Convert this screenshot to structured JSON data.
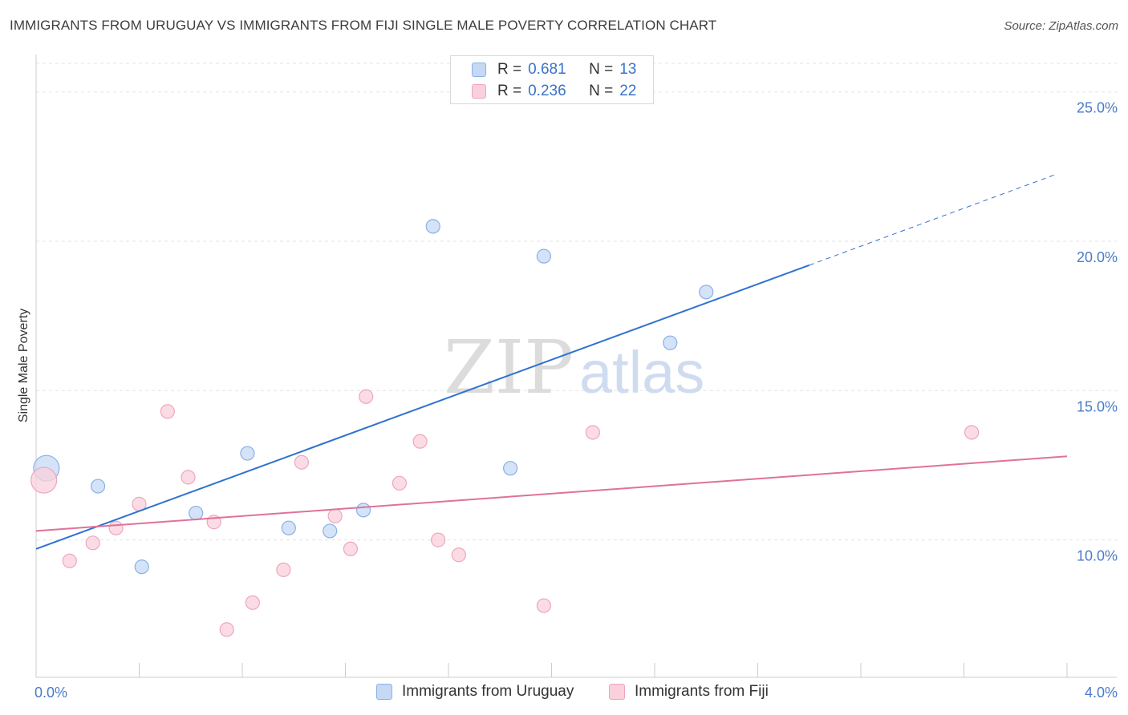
{
  "header": {
    "title": "IMMIGRANTS FROM URUGUAY VS IMMIGRANTS FROM FIJI SINGLE MALE POVERTY CORRELATION CHART",
    "source": "Source: ZipAtlas.com"
  },
  "watermark": {
    "zip": "ZIP",
    "atlas": "atlas"
  },
  "legend": {
    "r_label": "R =",
    "n_label": "N =",
    "rows": [
      {
        "r": "0.681",
        "n": "13"
      },
      {
        "r": "0.236",
        "n": "22"
      }
    ]
  },
  "colors": {
    "uruguay_fill": "#c5d9f5",
    "uruguay_stroke": "#8ab0e6",
    "uruguay_line": "#2f72d0",
    "fiji_fill": "#f9d0dc",
    "fiji_stroke": "#eea6bd",
    "fiji_line": "#e0719a",
    "grid": "#e3e3e3",
    "tick_text": "#4a7bc8"
  },
  "chart_data": {
    "type": "scatter",
    "ylabel": "Single Male Poverty",
    "xlim": [
      0,
      4
    ],
    "ylim": [
      5.4,
      26.2
    ],
    "x_tick_labels": [
      {
        "value": 0,
        "label": "0.0%"
      },
      {
        "value": 4,
        "label": "4.0%"
      }
    ],
    "y_ticks": [
      {
        "value": 10,
        "label": "10.0%"
      },
      {
        "value": 15,
        "label": "15.0%"
      },
      {
        "value": 20,
        "label": "20.0%"
      },
      {
        "value": 25,
        "label": "25.0%"
      }
    ],
    "grid": true,
    "legend_position": "top-center",
    "series": [
      {
        "name": "Immigrants from Uruguay",
        "points": [
          {
            "x": 0.04,
            "y": 12.4,
            "big": true
          },
          {
            "x": 0.24,
            "y": 11.8
          },
          {
            "x": 0.41,
            "y": 9.1
          },
          {
            "x": 0.62,
            "y": 10.9
          },
          {
            "x": 0.82,
            "y": 12.9
          },
          {
            "x": 0.98,
            "y": 10.4
          },
          {
            "x": 1.14,
            "y": 10.3
          },
          {
            "x": 1.27,
            "y": 11.0
          },
          {
            "x": 1.54,
            "y": 20.5
          },
          {
            "x": 1.84,
            "y": 12.4
          },
          {
            "x": 1.97,
            "y": 19.5
          },
          {
            "x": 2.46,
            "y": 16.6
          },
          {
            "x": 2.6,
            "y": 18.3
          }
        ],
        "trend": {
          "x0": 0.0,
          "y0": 9.7,
          "x1": 3.0,
          "y1": 19.2,
          "x_dash_end": 3.96,
          "y_dash_end": 22.25
        }
      },
      {
        "name": "Immigrants from Fiji",
        "points": [
          {
            "x": 0.03,
            "y": 12.0,
            "big": true
          },
          {
            "x": 0.13,
            "y": 9.3
          },
          {
            "x": 0.22,
            "y": 9.9
          },
          {
            "x": 0.31,
            "y": 10.4
          },
          {
            "x": 0.4,
            "y": 11.2
          },
          {
            "x": 0.51,
            "y": 14.3
          },
          {
            "x": 0.59,
            "y": 12.1
          },
          {
            "x": 0.69,
            "y": 10.6
          },
          {
            "x": 0.74,
            "y": 7.0
          },
          {
            "x": 0.84,
            "y": 7.9
          },
          {
            "x": 0.96,
            "y": 9.0
          },
          {
            "x": 1.03,
            "y": 12.6
          },
          {
            "x": 1.16,
            "y": 10.8
          },
          {
            "x": 1.22,
            "y": 9.7
          },
          {
            "x": 1.28,
            "y": 14.8
          },
          {
            "x": 1.41,
            "y": 11.9
          },
          {
            "x": 1.49,
            "y": 13.3
          },
          {
            "x": 1.56,
            "y": 10.0
          },
          {
            "x": 1.64,
            "y": 9.5
          },
          {
            "x": 1.97,
            "y": 7.8
          },
          {
            "x": 2.16,
            "y": 13.6
          },
          {
            "x": 3.63,
            "y": 13.6
          }
        ],
        "trend": {
          "x0": 0.0,
          "y0": 10.3,
          "x1": 4.0,
          "y1": 12.8
        }
      }
    ]
  }
}
